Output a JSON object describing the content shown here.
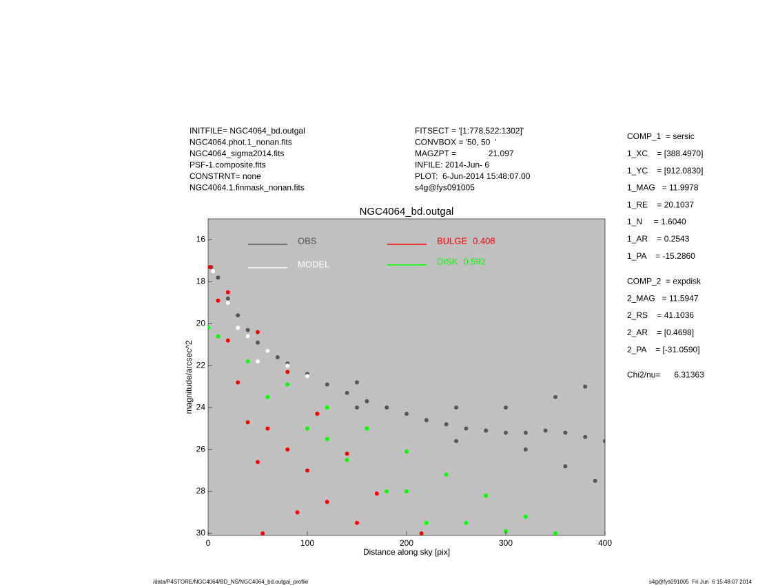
{
  "info_left": [
    "INITFILE= NGC4064_bd.outgal",
    "NGC4064.phot.1_nonan.fits",
    "NGC4064_sigma2014.fits",
    "PSF-1.composite.fits",
    "CONSTRNT= none",
    "NGC4064.1.finmask_nonan.fits"
  ],
  "info_mid": [
    "FITSECT = '[1:778,522:1302]'",
    "CONVBOX = '50, 50  '",
    "MAGZPT =              21.097",
    "INFILE: 2014-Jun- 6",
    "PLOT:  6-Jun-2014 15:48:07.00",
    "s4g@fys091005"
  ],
  "params": [
    [
      "COMP_1  = sersic",
      "1_XC    = [388.4970]",
      "1_YC    = [912.0830]",
      "1_MAG   = 11.9978",
      "1_RE    = 20.1037",
      "1_N     = 1.6040",
      "1_AR    = 0.2543",
      "1_PA    = -15.2860"
    ],
    [
      "COMP_2  = expdisk",
      "2_MAG   = 11.5947",
      "2_RS    = 41.1036",
      "2_AR    = [0.4698]",
      "2_PA    = [-31.0590]"
    ],
    [
      "Chi2/nu=      6.31363"
    ]
  ],
  "footer_left": "/data/P4STORE/NGC4064/BD_NS/NGC4064_bd.outgal_profile",
  "footer_right": "s4g@fys091005  Fri Jun  6 15:48:07 2014",
  "chart_data": {
    "type": "scatter",
    "title": "NGC4064_bd.outgal",
    "x_label": "Distance along sky [pix]",
    "y_label": "magnitude/arcsec^2",
    "xlim": [
      0,
      400
    ],
    "xticks": [
      0,
      100,
      200,
      300,
      400
    ],
    "ylim": [
      15,
      30.1
    ],
    "yticks": [
      16,
      18,
      20,
      22,
      24,
      26,
      28,
      30
    ],
    "y_reversed": true,
    "background": "#c0c0c0",
    "series": [
      {
        "name": "OBS",
        "color": "#555555",
        "x": [
          3,
          10,
          20,
          30,
          40,
          50,
          60,
          70,
          80,
          100,
          120,
          140,
          160,
          180,
          200,
          220,
          240,
          260,
          280,
          300,
          320,
          340,
          360,
          380,
          400,
          300,
          350,
          380,
          320,
          360,
          390,
          250,
          250,
          150,
          150
        ],
        "values": [
          17.3,
          17.8,
          18.8,
          19.6,
          20.3,
          20.9,
          21.3,
          21.6,
          21.9,
          22.4,
          22.9,
          23.3,
          23.7,
          24.0,
          24.3,
          24.6,
          24.8,
          25.0,
          25.1,
          25.2,
          25.2,
          25.1,
          25.2,
          25.4,
          25.6,
          24.0,
          23.5,
          23.0,
          26.0,
          26.8,
          27.5,
          24.0,
          25.6,
          22.8,
          24.0
        ]
      },
      {
        "name": "MODEL",
        "color": "#ffffff",
        "x": [
          5,
          20,
          30,
          40,
          50,
          60,
          80,
          100
        ],
        "values": [
          17.5,
          19.0,
          20.2,
          20.6,
          21.8,
          21.3,
          22.0,
          22.5
        ]
      },
      {
        "name": "BULGE",
        "fraction": 0.408,
        "color": "#ff0000",
        "x": [
          2,
          10,
          20,
          30,
          40,
          50,
          55,
          20,
          50,
          80,
          110,
          140,
          170,
          215,
          100,
          80,
          60,
          120,
          90,
          150
        ],
        "values": [
          17.3,
          18.9,
          20.8,
          22.8,
          24.7,
          26.6,
          30,
          18.5,
          20.4,
          22.3,
          24.3,
          26.2,
          28.1,
          30,
          27,
          26,
          25,
          28.5,
          29,
          29.5
        ]
      },
      {
        "name": "DISK",
        "fraction": 0.592,
        "color": "#00ff00",
        "x": [
          0,
          10,
          40,
          80,
          120,
          160,
          200,
          240,
          280,
          320,
          350,
          60,
          100,
          140,
          180,
          220,
          120,
          200,
          260,
          300
        ],
        "values": [
          20.2,
          20.6,
          21.8,
          22.9,
          24.0,
          25.0,
          26.1,
          27.2,
          28.2,
          29.2,
          30,
          23.5,
          25.0,
          26.5,
          28,
          29.5,
          25.5,
          28,
          29.5,
          29.9
        ]
      }
    ]
  }
}
